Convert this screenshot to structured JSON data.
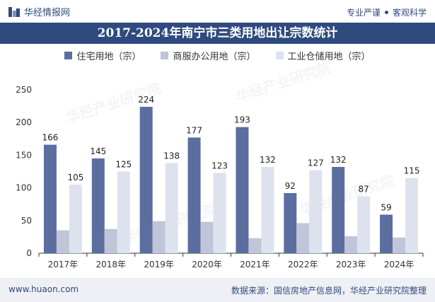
{
  "header": {
    "brand": "华经情报网",
    "tagline_left": "专业严谨",
    "tagline_right": "客观科学"
  },
  "chart_data": {
    "type": "bar",
    "title": "2017-2024年南宁市三类用地出让宗数统计",
    "categories": [
      "2017年",
      "2018年",
      "2019年",
      "2020年",
      "2021年",
      "2022年",
      "2023年",
      "2024年"
    ],
    "series": [
      {
        "name": "住宅用地（宗）",
        "values": [
          166,
          145,
          224,
          177,
          193,
          92,
          132,
          59
        ],
        "color": "#5b6e9f",
        "labeled": true
      },
      {
        "name": "商服办公用地（宗）",
        "values": [
          35,
          37,
          49,
          48,
          23,
          46,
          26,
          24
        ],
        "color": "#bfc6d7",
        "labeled": false
      },
      {
        "name": "工业仓储用地（宗）",
        "values": [
          105,
          125,
          138,
          123,
          132,
          127,
          87,
          115
        ],
        "color": "#dde2ee",
        "labeled": true
      }
    ],
    "ylim": [
      0,
      250
    ],
    "yticks": [
      0,
      50,
      100,
      150,
      200,
      250
    ],
    "legend_position": "top",
    "grid": false
  },
  "footer": {
    "website": "www.huaon.com",
    "source": "数据来源：国信房地产信息网，华经产业研究院整理"
  },
  "watermark": {
    "text": "华经产业研究院",
    "url": "www.huaon.com"
  }
}
